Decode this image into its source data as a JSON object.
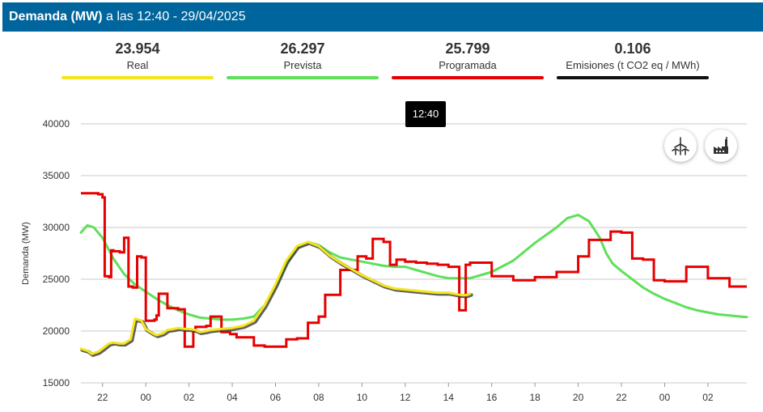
{
  "header": {
    "title_bold": "Demanda (MW)",
    "title_rest": " a las 12:40 - 29/04/2025"
  },
  "kpis": [
    {
      "value": "23.954",
      "label": "Real",
      "color": "#f5e61c"
    },
    {
      "value": "26.297",
      "label": "Prevista",
      "color": "#5ee05a"
    },
    {
      "value": "25.799",
      "label": "Programada",
      "color": "#e60000"
    },
    {
      "value": "0.106",
      "label": "Emisiones (t CO2 eq / MWh)",
      "color": "#111111"
    }
  ],
  "tooltip": "12:40",
  "buttons": {
    "wind": "wind-turbine-icon",
    "factory": "factory-icon"
  },
  "chart_data": {
    "type": "line",
    "ylabel": "Demanda (MW)",
    "ylim": [
      15000,
      40000
    ],
    "yticks": [
      15000,
      20000,
      25000,
      30000,
      35000,
      40000
    ],
    "xlim": [
      21.0,
      51.8
    ],
    "xticks": [
      22,
      24,
      26,
      28,
      30,
      32,
      34,
      36,
      38,
      40,
      42,
      44,
      46,
      48,
      50
    ],
    "xtick_labels": [
      "22",
      "00",
      "02",
      "04",
      "06",
      "08",
      "10",
      "12",
      "14",
      "16",
      "18",
      "20",
      "22",
      "00",
      "02"
    ],
    "grid": true,
    "series": [
      {
        "name": "Real",
        "color": "#f5e61c",
        "x": [
          21.0,
          21.3,
          21.5,
          21.8,
          22.0,
          22.3,
          22.5,
          22.8,
          23.0,
          23.3,
          23.5,
          23.8,
          24.0,
          24.3,
          24.5,
          24.8,
          25.0,
          25.3,
          25.5,
          25.8,
          26.0,
          26.3,
          26.5,
          26.8,
          27.0,
          27.5,
          28.0,
          28.5,
          29.0,
          29.5,
          30.0,
          30.5,
          31.0,
          31.5,
          32.0,
          32.5,
          33.0,
          33.5,
          34.0,
          34.5,
          35.0,
          35.5,
          36.0,
          36.5,
          37.0,
          37.5,
          38.0,
          38.5,
          38.8,
          39.0
        ],
        "values": [
          18300,
          18100,
          17800,
          18000,
          18300,
          18800,
          18900,
          18800,
          18800,
          19200,
          21200,
          21000,
          20200,
          19800,
          19600,
          19800,
          20100,
          20200,
          20300,
          20200,
          20200,
          20100,
          19900,
          20000,
          20100,
          20200,
          20300,
          20500,
          21000,
          22500,
          24500,
          26800,
          28200,
          28600,
          28200,
          27300,
          26600,
          26000,
          25400,
          24900,
          24400,
          24100,
          24000,
          23900,
          23800,
          23700,
          23700,
          23500,
          23450,
          23600
        ]
      },
      {
        "name": "Prevista",
        "color": "#5ee05a",
        "x": [
          21.0,
          21.3,
          21.6,
          22.0,
          22.5,
          23.0,
          23.5,
          24.0,
          24.5,
          25.0,
          25.5,
          26.0,
          26.5,
          27.0,
          27.5,
          28.0,
          28.5,
          29.0,
          29.5,
          30.0,
          30.5,
          31.0,
          31.5,
          32.0,
          32.5,
          33.0,
          33.5,
          34.0,
          34.5,
          35.0,
          35.5,
          36.0,
          36.5,
          37.0,
          37.5,
          38.0,
          39.0,
          40.0,
          41.0,
          42.0,
          43.0,
          43.5,
          44.0,
          44.5,
          45.0,
          45.3,
          45.6,
          46.0,
          46.5,
          47.0,
          47.5,
          48.0,
          48.5,
          49.0,
          49.5,
          50.0,
          50.5,
          51.0,
          51.5,
          51.8
        ],
        "values": [
          29500,
          30200,
          30000,
          29000,
          27000,
          25500,
          24500,
          23800,
          23100,
          22500,
          22000,
          21600,
          21300,
          21200,
          21100,
          21100,
          21200,
          21400,
          22500,
          24200,
          26300,
          28000,
          28600,
          28300,
          27600,
          27100,
          26900,
          26700,
          26500,
          26300,
          26200,
          26200,
          25900,
          25600,
          25300,
          25100,
          25100,
          25700,
          26800,
          28500,
          30000,
          30900,
          31200,
          30600,
          29000,
          27500,
          26500,
          25800,
          25000,
          24200,
          23600,
          23100,
          22700,
          22300,
          22000,
          21800,
          21600,
          21500,
          21400,
          21350
        ]
      },
      {
        "name": "Programada",
        "color": "#e60000",
        "x": [
          21.0,
          21.8,
          22.0,
          22.1,
          22.3,
          22.4,
          22.5,
          22.8,
          23.0,
          23.2,
          23.4,
          23.6,
          23.8,
          24.0,
          24.4,
          24.5,
          24.6,
          25.0,
          25.5,
          25.8,
          26.2,
          26.3,
          26.8,
          27.0,
          27.5,
          27.9,
          28.2,
          29.0,
          29.5,
          30.0,
          30.5,
          31.0,
          31.5,
          32.0,
          32.3,
          33.0,
          33.4,
          33.8,
          34.2,
          34.5,
          35.0,
          35.3,
          35.6,
          36.0,
          36.5,
          37.0,
          37.5,
          38.0,
          38.5,
          38.8,
          39.0,
          40.0,
          41.0,
          42.0,
          43.0,
          44.0,
          44.5,
          45.0,
          45.5,
          46.0,
          46.5,
          47.0,
          47.5,
          48.0,
          49.0,
          50.0,
          51.0,
          51.8
        ],
        "values": [
          33300,
          33200,
          32900,
          25300,
          25200,
          27800,
          27700,
          27600,
          29000,
          24300,
          24200,
          27200,
          27100,
          21000,
          21100,
          21500,
          23600,
          22200,
          22100,
          18500,
          20100,
          20400,
          20500,
          21400,
          19900,
          19700,
          19400,
          18600,
          18500,
          18500,
          19200,
          19300,
          20800,
          21400,
          23500,
          25900,
          25900,
          27200,
          27000,
          28900,
          28600,
          26400,
          26900,
          26700,
          26600,
          26500,
          26400,
          26200,
          22000,
          26400,
          26600,
          25300,
          24900,
          25200,
          25700,
          27200,
          28800,
          28800,
          29600,
          29500,
          27000,
          26900,
          24900,
          24800,
          26200,
          25100,
          24300,
          24300
        ]
      }
    ]
  }
}
